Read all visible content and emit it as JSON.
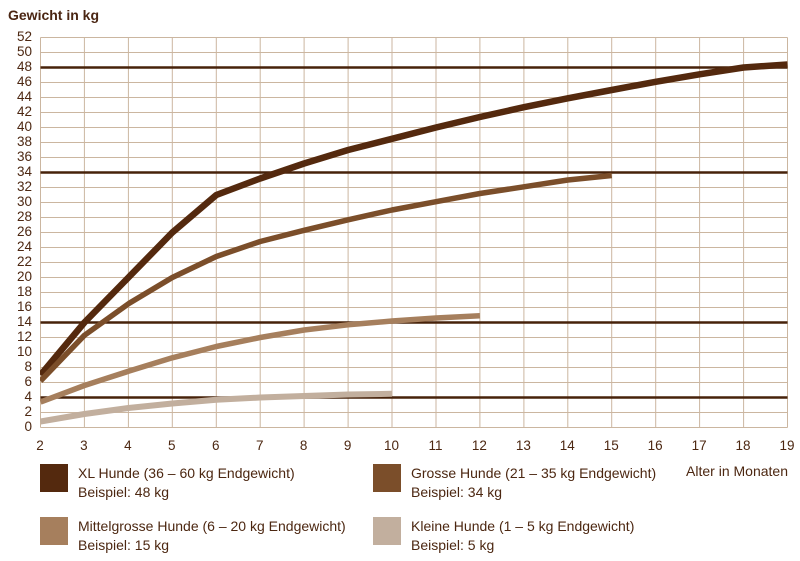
{
  "header": {
    "title": "Gewicht in kg"
  },
  "chart_data": {
    "type": "line",
    "title": "Gewicht in kg",
    "xlabel": "Alter in Monaten",
    "ylabel": "Gewicht in kg",
    "xlim": [
      2,
      19
    ],
    "ylim": [
      0,
      52
    ],
    "x_ticks": [
      2,
      3,
      4,
      5,
      6,
      7,
      8,
      9,
      10,
      11,
      12,
      13,
      14,
      15,
      16,
      17,
      18,
      19
    ],
    "y_ticks": [
      0,
      2,
      4,
      6,
      8,
      10,
      12,
      14,
      16,
      18,
      20,
      22,
      24,
      26,
      28,
      30,
      32,
      34,
      36,
      38,
      40,
      42,
      44,
      46,
      48,
      50,
      52
    ],
    "grid": true,
    "grid_color": "#CBB6A0",
    "reference_line_color": "#47220A",
    "reference_lines_kg": [
      48,
      34,
      14,
      4
    ],
    "legend_position": "bottom",
    "text_color": "#4C2711",
    "series": [
      {
        "name": "XL Hunde (36 – 60 kg Endgewicht)",
        "example": "Beispiel: 48 kg",
        "color": "#54290E",
        "stroke_width": 6.5,
        "points": [
          [
            2,
            7
          ],
          [
            3,
            14
          ],
          [
            4,
            20
          ],
          [
            5,
            26
          ],
          [
            6,
            31
          ],
          [
            7,
            33.2
          ],
          [
            8,
            35.2
          ],
          [
            9,
            37
          ],
          [
            10,
            38.5
          ],
          [
            11,
            40
          ],
          [
            12,
            41.4
          ],
          [
            13,
            42.7
          ],
          [
            14,
            43.9
          ],
          [
            15,
            45
          ],
          [
            16,
            46.1
          ],
          [
            17,
            47.1
          ],
          [
            18,
            48
          ],
          [
            19,
            48.4
          ]
        ]
      },
      {
        "name": "Grosse Hunde (21 – 35 kg Endgewicht)",
        "example": "Beispiel: 34 kg",
        "color": "#7B4E2A",
        "stroke_width": 5.5,
        "points": [
          [
            2,
            6.2
          ],
          [
            3,
            12.3
          ],
          [
            4,
            16.5
          ],
          [
            5,
            20
          ],
          [
            6,
            22.8
          ],
          [
            7,
            24.8
          ],
          [
            8,
            26.3
          ],
          [
            9,
            27.7
          ],
          [
            10,
            29
          ],
          [
            11,
            30.1
          ],
          [
            12,
            31.2
          ],
          [
            13,
            32.1
          ],
          [
            14,
            33
          ],
          [
            15,
            33.6
          ]
        ]
      },
      {
        "name": "Mittelgrosse Hunde (6 – 20 kg Endgewicht)",
        "example": "Beispiel: 15 kg",
        "color": "#A67F5D",
        "stroke_width": 5.5,
        "points": [
          [
            2,
            3.4
          ],
          [
            3,
            5.6
          ],
          [
            4,
            7.5
          ],
          [
            5,
            9.3
          ],
          [
            6,
            10.8
          ],
          [
            7,
            12
          ],
          [
            8,
            13
          ],
          [
            9,
            13.7
          ],
          [
            10,
            14.2
          ],
          [
            11,
            14.6
          ],
          [
            12,
            14.9
          ]
        ]
      },
      {
        "name": "Kleine Hunde (1 – 5 kg Endgewicht)",
        "example": "Beispiel: 5 kg",
        "color": "#C2AF9E",
        "stroke_width": 6,
        "points": [
          [
            2,
            0.8
          ],
          [
            3,
            1.8
          ],
          [
            4,
            2.6
          ],
          [
            5,
            3.2
          ],
          [
            6,
            3.7
          ],
          [
            7,
            4
          ],
          [
            8,
            4.2
          ],
          [
            9,
            4.4
          ],
          [
            10,
            4.5
          ]
        ]
      }
    ]
  }
}
